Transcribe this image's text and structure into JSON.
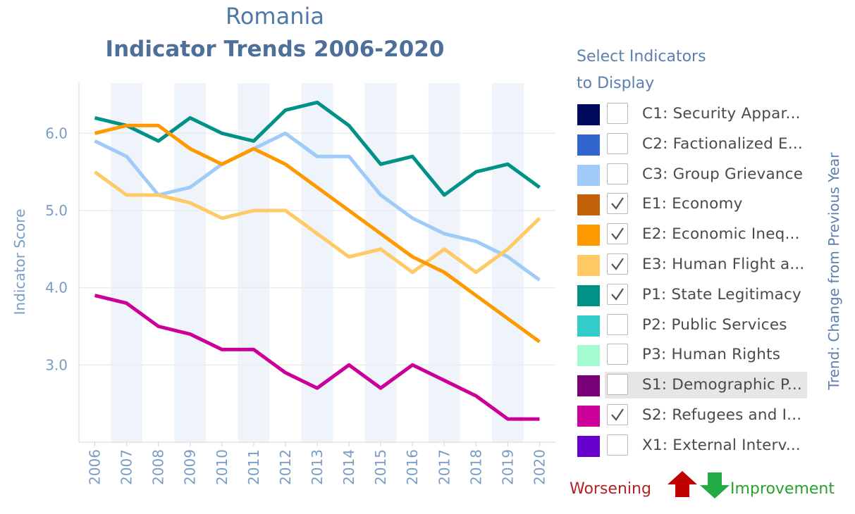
{
  "header": {
    "country": "Romania",
    "title": "Indicator Trends 2006-2020"
  },
  "legend": {
    "heading_line1": "Select Indicators",
    "heading_line2": "to Display",
    "items": [
      {
        "label": "C1: Security Appar...",
        "color": "#000a5c",
        "checked": false,
        "highlighted": false
      },
      {
        "label": "C2: Factionalized E...",
        "color": "#3366cc",
        "checked": false,
        "highlighted": false
      },
      {
        "label": "C3: Group Grievance",
        "color": "#9fcbf8",
        "checked": false,
        "highlighted": false
      },
      {
        "label": "E1: Economy",
        "color": "#c4620a",
        "checked": true,
        "highlighted": false
      },
      {
        "label": "E2: Economic Ineq...",
        "color": "#ff9900",
        "checked": true,
        "highlighted": false
      },
      {
        "label": "E3: Human Flight a...",
        "color": "#ffc966",
        "checked": true,
        "highlighted": false
      },
      {
        "label": "P1: State Legitimacy",
        "color": "#009187",
        "checked": true,
        "highlighted": false
      },
      {
        "label": "P2: Public Services",
        "color": "#33cccc",
        "checked": false,
        "highlighted": false
      },
      {
        "label": "P3: Human Rights",
        "color": "#a3fccf",
        "checked": false,
        "highlighted": false
      },
      {
        "label": "S1: Demographic P...",
        "color": "#7a0077",
        "checked": false,
        "highlighted": true
      },
      {
        "label": "S2: Refugees and I...",
        "color": "#cc0099",
        "checked": true,
        "highlighted": false
      },
      {
        "label": "X1: External Interv...",
        "color": "#6600cc",
        "checked": false,
        "highlighted": false
      }
    ]
  },
  "trend_legend": {
    "axis_title": "Trend: Change from Previous Year",
    "worsening": "Worsening",
    "improvement": "Improvement",
    "worsening_color": "#c00000",
    "improvement_color": "#22aa44",
    "up_icon": "red-up-arrow",
    "down_icon": "green-down-arrow"
  },
  "chart_data": {
    "type": "line",
    "ylabel": "Indicator Score",
    "xlabel": "",
    "x": [
      "2006",
      "2007",
      "2008",
      "2009",
      "2010",
      "2011",
      "2012",
      "2013",
      "2014",
      "2015",
      "2016",
      "2017",
      "2018",
      "2019",
      "2020"
    ],
    "yticks": [
      "3.0",
      "4.0",
      "5.0",
      "6.0"
    ],
    "ylim": [
      2.0,
      6.65
    ],
    "grid": true,
    "alternate_column_shading": true,
    "series": [
      {
        "name": "P1: State Legitimacy",
        "color": "#009187",
        "values": [
          6.2,
          6.1,
          5.9,
          6.2,
          6.0,
          5.9,
          6.3,
          6.4,
          6.1,
          5.6,
          5.7,
          5.2,
          5.5,
          5.6,
          5.3
        ]
      },
      {
        "name": "C3: Group Grievance",
        "color": "#9fcbf8",
        "values": [
          5.9,
          5.7,
          5.2,
          5.3,
          5.6,
          5.8,
          6.0,
          5.7,
          5.7,
          5.2,
          4.9,
          4.7,
          4.6,
          4.4,
          4.1
        ]
      },
      {
        "name": "E3: Human Flight a...",
        "color": "#ffc966",
        "values": [
          5.5,
          5.2,
          5.2,
          5.1,
          4.9,
          5.0,
          5.0,
          4.7,
          4.4,
          4.5,
          4.2,
          4.5,
          4.2,
          4.5,
          4.9
        ]
      },
      {
        "name": "E2: Economic Ineq...",
        "color": "#ff9900",
        "values": [
          6.0,
          6.1,
          6.1,
          5.8,
          5.6,
          5.8,
          5.6,
          5.3,
          5.0,
          4.7,
          4.4,
          4.2,
          3.9,
          3.6,
          3.3
        ]
      },
      {
        "name": "S2: Refugees and I...",
        "color": "#cc0099",
        "values": [
          3.9,
          3.8,
          3.5,
          3.4,
          3.2,
          3.2,
          2.9,
          2.7,
          3.0,
          2.7,
          3.0,
          2.8,
          2.6,
          2.3,
          2.3
        ]
      }
    ]
  }
}
